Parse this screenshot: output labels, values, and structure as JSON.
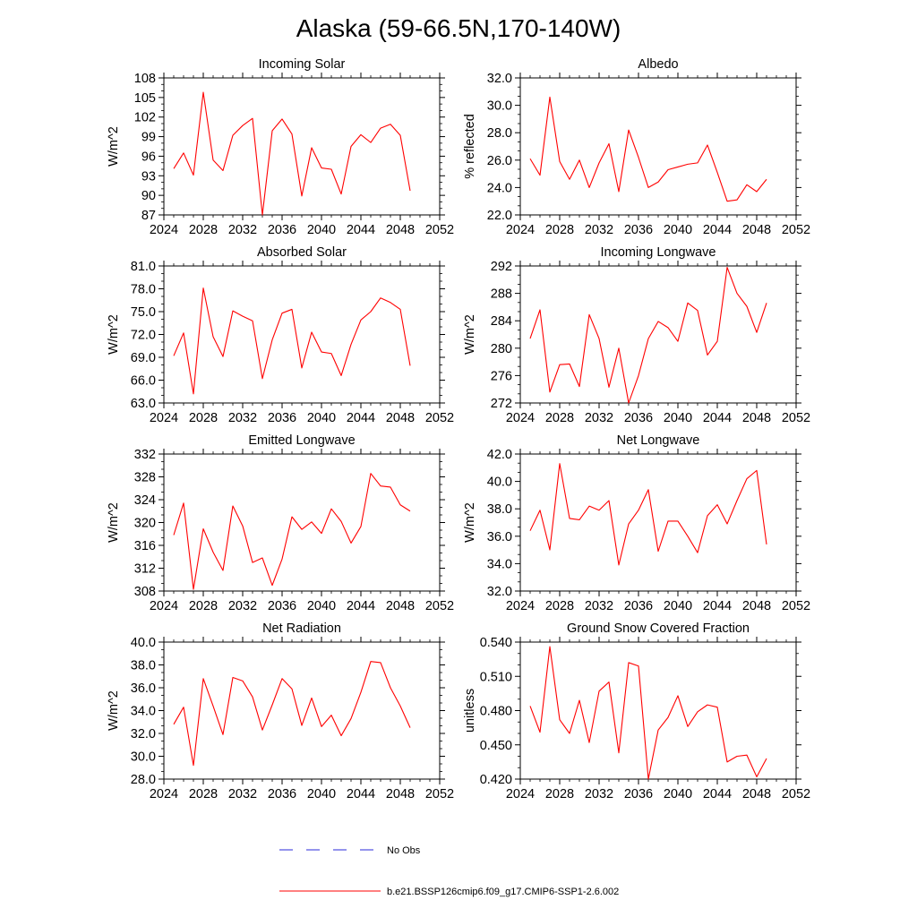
{
  "title": "Alaska (59-66.5N,170-140W)",
  "legend": {
    "obs_label": "No Obs",
    "model_label": "b.e21.BSSP126cmip6.f09_g17.CMIP6-SSP1-2.6.002",
    "obs_color": "#2a2adb",
    "model_color": "#ff0000"
  },
  "chart_data": [
    {
      "type": "line",
      "title": "Incoming Solar",
      "ylabel": "W/m^2",
      "xlim": [
        2024,
        2052
      ],
      "xticks": [
        2024,
        2028,
        2032,
        2036,
        2040,
        2044,
        2048,
        2052
      ],
      "ylim": [
        87,
        108
      ],
      "yticks": [
        "87",
        "90",
        "93",
        "96",
        "99",
        "102",
        "105",
        "108"
      ],
      "x": [
        2025,
        2026,
        2027,
        2028,
        2029,
        2030,
        2031,
        2032,
        2033,
        2034,
        2035,
        2036,
        2037,
        2038,
        2039,
        2040,
        2041,
        2042,
        2043,
        2044,
        2045,
        2046,
        2047,
        2048,
        2049
      ],
      "series": [
        {
          "values": [
            94.1,
            96.5,
            93.1,
            105.8,
            95.4,
            93.8,
            99.2,
            100.7,
            101.8,
            87.0,
            99.9,
            101.7,
            99.4,
            89.9,
            97.3,
            94.2,
            94.0,
            90.2,
            97.5,
            99.3,
            98.1,
            100.3,
            100.9,
            99.2,
            90.7
          ]
        }
      ]
    },
    {
      "type": "line",
      "title": "Albedo",
      "ylabel": "% reflected",
      "xlim": [
        2024,
        2052
      ],
      "xticks": [
        2024,
        2028,
        2032,
        2036,
        2040,
        2044,
        2048,
        2052
      ],
      "ylim": [
        22.0,
        32.0
      ],
      "yticks": [
        "22.0",
        "24.0",
        "26.0",
        "28.0",
        "30.0",
        "32.0"
      ],
      "x": [
        2025,
        2026,
        2027,
        2028,
        2029,
        2030,
        2031,
        2032,
        2033,
        2034,
        2035,
        2036,
        2037,
        2038,
        2039,
        2040,
        2041,
        2042,
        2043,
        2044,
        2045,
        2046,
        2047,
        2048,
        2049
      ],
      "series": [
        {
          "values": [
            26.1,
            24.9,
            30.6,
            25.9,
            24.6,
            26.0,
            24.0,
            25.8,
            27.2,
            23.7,
            28.2,
            26.2,
            24.0,
            24.4,
            25.3,
            25.5,
            25.7,
            25.8,
            27.1,
            25.1,
            23.0,
            23.1,
            24.2,
            23.7,
            24.6
          ]
        }
      ]
    },
    {
      "type": "line",
      "title": "Absorbed Solar",
      "ylabel": "W/m^2",
      "xlim": [
        2024,
        2052
      ],
      "xticks": [
        2024,
        2028,
        2032,
        2036,
        2040,
        2044,
        2048,
        2052
      ],
      "ylim": [
        63.0,
        81.0
      ],
      "yticks": [
        "63.0",
        "66.0",
        "69.0",
        "72.0",
        "75.0",
        "78.0",
        "81.0"
      ],
      "x": [
        2025,
        2026,
        2027,
        2028,
        2029,
        2030,
        2031,
        2032,
        2033,
        2034,
        2035,
        2036,
        2037,
        2038,
        2039,
        2040,
        2041,
        2042,
        2043,
        2044,
        2045,
        2046,
        2047,
        2048,
        2049
      ],
      "series": [
        {
          "values": [
            69.2,
            72.2,
            64.2,
            78.1,
            71.7,
            69.1,
            75.1,
            74.4,
            73.8,
            66.2,
            71.3,
            74.8,
            75.3,
            67.6,
            72.3,
            69.7,
            69.5,
            66.6,
            70.7,
            73.9,
            75.0,
            76.8,
            76.2,
            75.3,
            67.9
          ]
        }
      ]
    },
    {
      "type": "line",
      "title": "Incoming Longwave",
      "ylabel": "W/m^2",
      "xlim": [
        2024,
        2052
      ],
      "xticks": [
        2024,
        2028,
        2032,
        2036,
        2040,
        2044,
        2048,
        2052
      ],
      "ylim": [
        272,
        292
      ],
      "yticks": [
        "272",
        "276",
        "280",
        "284",
        "288",
        "292"
      ],
      "x": [
        2025,
        2026,
        2027,
        2028,
        2029,
        2030,
        2031,
        2032,
        2033,
        2034,
        2035,
        2036,
        2037,
        2038,
        2039,
        2040,
        2041,
        2042,
        2043,
        2044,
        2045,
        2046,
        2047,
        2048,
        2049
      ],
      "series": [
        {
          "values": [
            281.4,
            285.6,
            273.6,
            277.6,
            277.7,
            274.4,
            284.9,
            281.4,
            274.3,
            280.0,
            272.0,
            276.0,
            281.4,
            283.9,
            283.0,
            281.0,
            286.6,
            285.5,
            279.0,
            281.0,
            291.8,
            288.0,
            286.1,
            282.3,
            286.6
          ]
        }
      ]
    },
    {
      "type": "line",
      "title": "Emitted Longwave",
      "ylabel": "W/m^2",
      "xlim": [
        2024,
        2052
      ],
      "xticks": [
        2024,
        2028,
        2032,
        2036,
        2040,
        2044,
        2048,
        2052
      ],
      "ylim": [
        308,
        332
      ],
      "yticks": [
        "308",
        "312",
        "316",
        "320",
        "324",
        "328",
        "332"
      ],
      "x": [
        2025,
        2026,
        2027,
        2028,
        2029,
        2030,
        2031,
        2032,
        2033,
        2034,
        2035,
        2036,
        2037,
        2038,
        2039,
        2040,
        2041,
        2042,
        2043,
        2044,
        2045,
        2046,
        2047,
        2048,
        2049
      ],
      "series": [
        {
          "values": [
            317.8,
            323.4,
            308.3,
            318.9,
            314.8,
            311.6,
            322.9,
            319.4,
            313.0,
            313.8,
            309.0,
            313.6,
            321.0,
            318.8,
            320.1,
            318.1,
            322.4,
            320.2,
            316.4,
            319.3,
            328.6,
            326.4,
            326.2,
            323.1,
            322.0
          ]
        }
      ]
    },
    {
      "type": "line",
      "title": "Net Longwave",
      "ylabel": "W/m^2",
      "xlim": [
        2024,
        2052
      ],
      "xticks": [
        2024,
        2028,
        2032,
        2036,
        2040,
        2044,
        2048,
        2052
      ],
      "ylim": [
        32.0,
        42.0
      ],
      "yticks": [
        "32.0",
        "34.0",
        "36.0",
        "38.0",
        "40.0",
        "42.0"
      ],
      "x": [
        2025,
        2026,
        2027,
        2028,
        2029,
        2030,
        2031,
        2032,
        2033,
        2034,
        2035,
        2036,
        2037,
        2038,
        2039,
        2040,
        2041,
        2042,
        2043,
        2044,
        2045,
        2046,
        2047,
        2048,
        2049
      ],
      "series": [
        {
          "values": [
            36.4,
            37.9,
            35.0,
            41.3,
            37.3,
            37.2,
            38.2,
            37.9,
            38.6,
            33.9,
            36.9,
            37.9,
            39.4,
            34.9,
            37.1,
            37.1,
            36.0,
            34.8,
            37.5,
            38.3,
            36.9,
            38.6,
            40.2,
            40.8,
            35.4
          ]
        }
      ]
    },
    {
      "type": "line",
      "title": "Net Radiation",
      "ylabel": "W/m^2",
      "xlim": [
        2024,
        2052
      ],
      "xticks": [
        2024,
        2028,
        2032,
        2036,
        2040,
        2044,
        2048,
        2052
      ],
      "ylim": [
        28.0,
        40.0
      ],
      "yticks": [
        "28.0",
        "30.0",
        "32.0",
        "34.0",
        "36.0",
        "38.0",
        "40.0"
      ],
      "x": [
        2025,
        2026,
        2027,
        2028,
        2029,
        2030,
        2031,
        2032,
        2033,
        2034,
        2035,
        2036,
        2037,
        2038,
        2039,
        2040,
        2041,
        2042,
        2043,
        2044,
        2045,
        2046,
        2047,
        2048,
        2049
      ],
      "series": [
        {
          "values": [
            32.8,
            34.3,
            29.2,
            36.8,
            34.4,
            31.9,
            36.9,
            36.6,
            35.2,
            32.3,
            34.5,
            36.8,
            35.9,
            32.7,
            35.1,
            32.6,
            33.6,
            31.8,
            33.3,
            35.6,
            38.3,
            38.2,
            36.0,
            34.4,
            32.5
          ]
        }
      ]
    },
    {
      "type": "line",
      "title": "Ground Snow Covered Fraction",
      "ylabel": "unitless",
      "xlim": [
        2024,
        2052
      ],
      "xticks": [
        2024,
        2028,
        2032,
        2036,
        2040,
        2044,
        2048,
        2052
      ],
      "ylim": [
        0.42,
        0.54
      ],
      "yticks": [
        "0.420",
        "0.450",
        "0.480",
        "0.510",
        "0.540"
      ],
      "x": [
        2025,
        2026,
        2027,
        2028,
        2029,
        2030,
        2031,
        2032,
        2033,
        2034,
        2035,
        2036,
        2037,
        2038,
        2039,
        2040,
        2041,
        2042,
        2043,
        2044,
        2045,
        2046,
        2047,
        2048,
        2049
      ],
      "series": [
        {
          "values": [
            0.484,
            0.461,
            0.536,
            0.472,
            0.46,
            0.489,
            0.452,
            0.497,
            0.505,
            0.443,
            0.522,
            0.519,
            0.42,
            0.463,
            0.474,
            0.493,
            0.466,
            0.479,
            0.485,
            0.483,
            0.435,
            0.44,
            0.441,
            0.422,
            0.438
          ]
        }
      ]
    }
  ]
}
